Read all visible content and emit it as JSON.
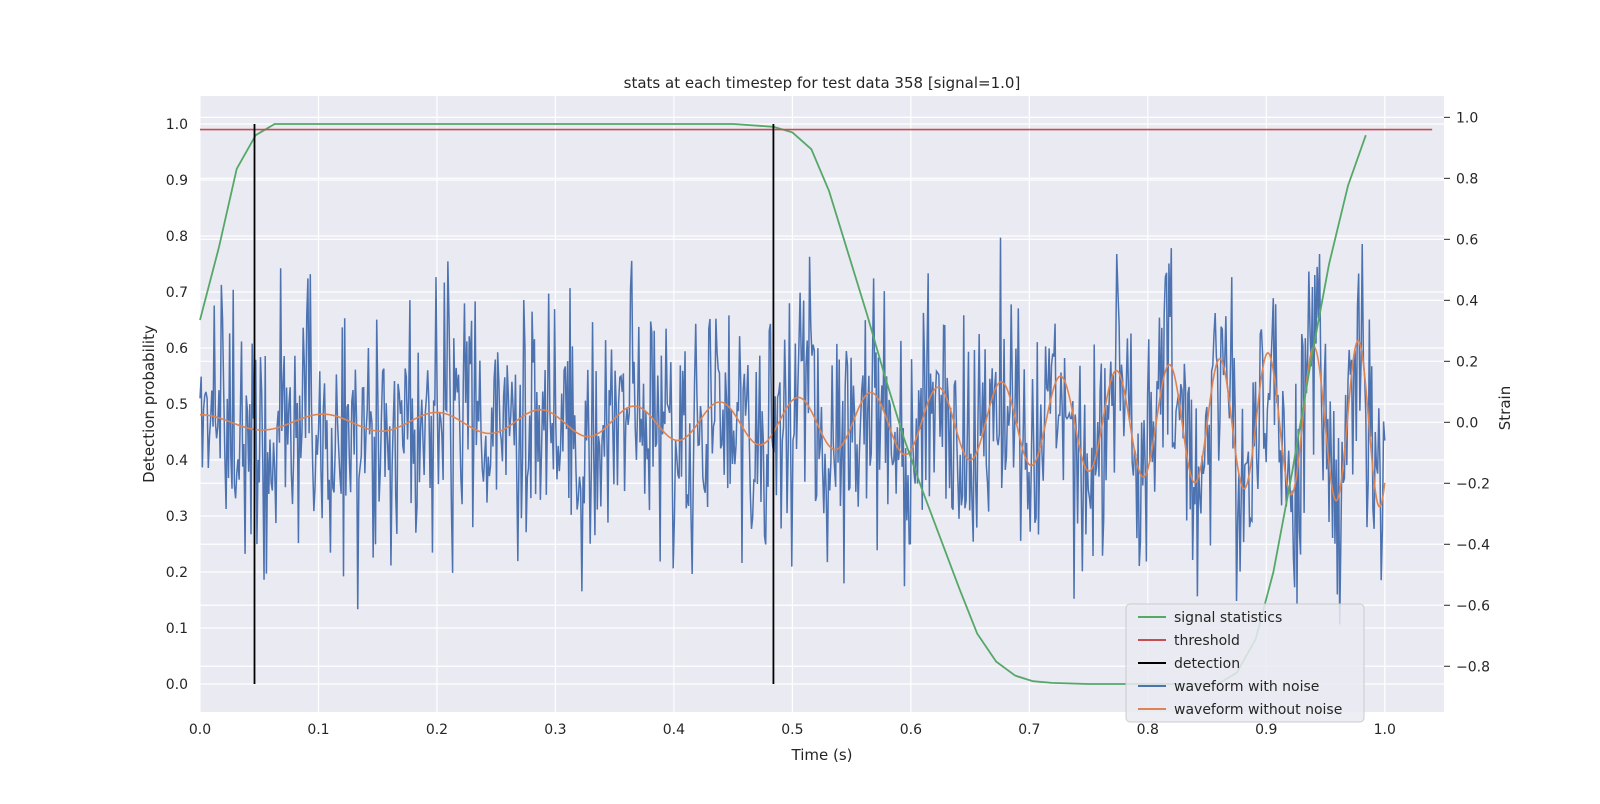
{
  "chart_data": {
    "type": "line",
    "title": "stats at each timestep for test data 358 [signal=1.0]",
    "xlabel": "Time (s)",
    "ylabel_left": "Detection probability",
    "ylabel_right": "Strain",
    "xlim": [
      0.0,
      1.05
    ],
    "ylim_left": [
      -0.05,
      1.05
    ],
    "ylim_right": [
      -0.95,
      1.07
    ],
    "x_ticks": [
      "0.0",
      "0.1",
      "0.2",
      "0.3",
      "0.4",
      "0.5",
      "0.6",
      "0.7",
      "0.8",
      "0.9",
      "1.0"
    ],
    "y_ticks_left": [
      "0.0",
      "0.1",
      "0.2",
      "0.3",
      "0.4",
      "0.5",
      "0.6",
      "0.7",
      "0.8",
      "0.9",
      "1.0"
    ],
    "y_ticks_right": [
      "−0.8",
      "−0.6",
      "−0.4",
      "−0.2",
      "0.0",
      "0.2",
      "0.4",
      "0.6",
      "0.8",
      "1.0"
    ],
    "grid": true,
    "legend_position": "lower-right",
    "legend": [
      "signal statistics",
      "threshold",
      "detection",
      "waveform with noise",
      "waveform without noise"
    ],
    "colors": {
      "signal_statistics": "#55a868",
      "threshold": "#c44e52",
      "detection": "#000000",
      "waveform_with_noise": "#4c72b0",
      "waveform_without_noise": "#dd8452",
      "plot_background": "#eaeaf2"
    },
    "signal_statistics": {
      "x": [
        0.0,
        0.016,
        0.031,
        0.047,
        0.063,
        0.078,
        0.094,
        0.109,
        0.125,
        0.2,
        0.3,
        0.4,
        0.45,
        0.484,
        0.5,
        0.516,
        0.531,
        0.547,
        0.563,
        0.578,
        0.594,
        0.609,
        0.625,
        0.641,
        0.656,
        0.672,
        0.688,
        0.703,
        0.719,
        0.75,
        0.8,
        0.85,
        0.859,
        0.875,
        0.891,
        0.906,
        0.922,
        0.938,
        0.953,
        0.969,
        0.984
      ],
      "y": [
        0.65,
        0.78,
        0.92,
        0.98,
        1.0,
        1.0,
        1.0,
        1.0,
        1.0,
        1.0,
        1.0,
        1.0,
        1.0,
        0.995,
        0.985,
        0.955,
        0.88,
        0.77,
        0.66,
        0.55,
        0.44,
        0.35,
        0.26,
        0.17,
        0.09,
        0.04,
        0.015,
        0.005,
        0.002,
        0.0,
        0.0,
        0.0,
        0.0,
        0.02,
        0.08,
        0.2,
        0.38,
        0.58,
        0.75,
        0.89,
        0.98
      ]
    },
    "threshold": {
      "x": [
        0.0,
        1.04
      ],
      "y": [
        0.99,
        0.99
      ]
    },
    "detections": [
      {
        "x": 0.046,
        "y0": 0.0,
        "y1": 1.0
      },
      {
        "x": 0.484,
        "y0": 0.0,
        "y1": 1.0
      }
    ],
    "waveform_without_noise": {
      "description_free": true,
      "x_range": [
        0.0,
        1.0
      ],
      "points": 1000,
      "start_amplitude": 0.025,
      "end_amplitude": 0.28,
      "start_frequency_hz": 9.5,
      "end_frequency_hz": 28.0,
      "initial_strain": 0.03
    },
    "waveform_with_noise": {
      "x_range": [
        0.0,
        1.0
      ],
      "points": 1000,
      "noise_std": 0.2,
      "strain_min": -0.9,
      "strain_max": 1.0
    }
  }
}
